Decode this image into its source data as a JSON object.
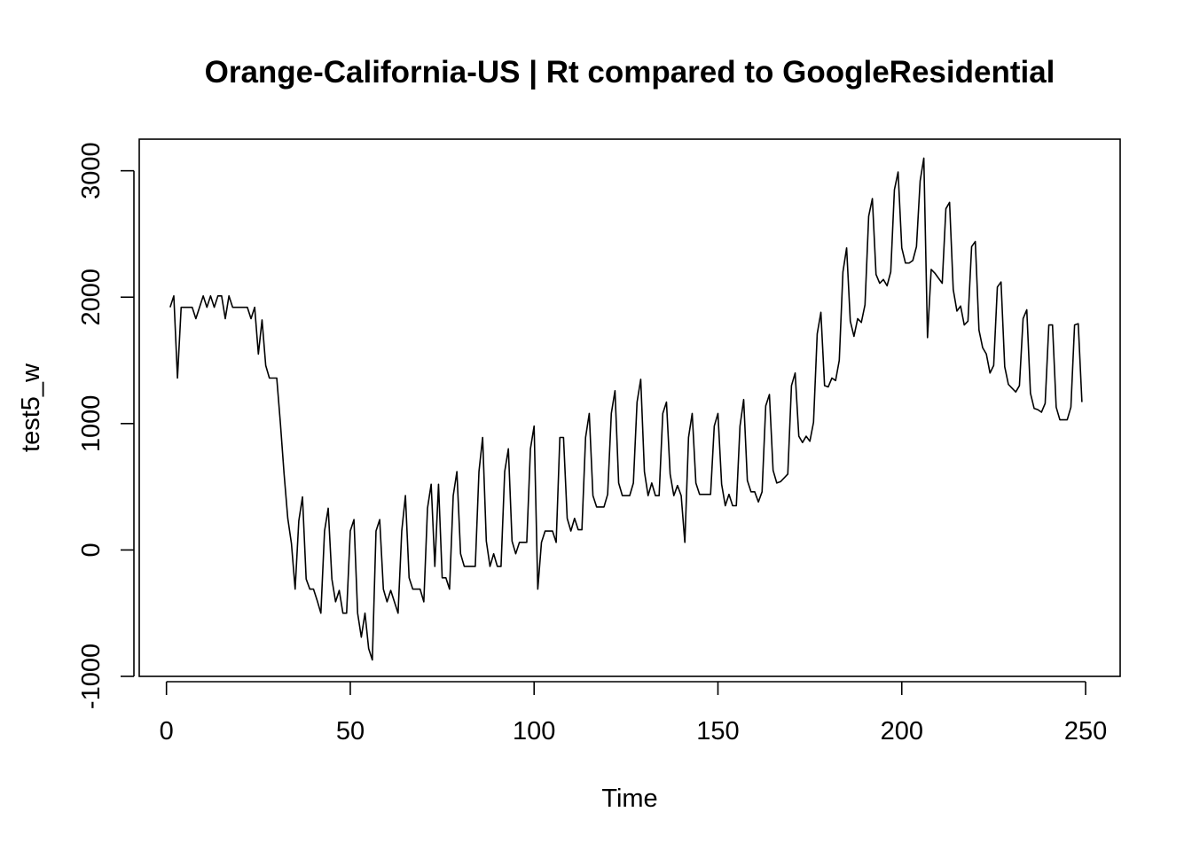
{
  "chart_data": {
    "type": "line",
    "title": "Orange-California-US | Rt compared to GoogleResidential",
    "xlabel": "Time",
    "ylabel": "test5_w",
    "xlim": [
      -7.4,
      259.4
    ],
    "ylim": [
      -1000,
      3250
    ],
    "xticks": [
      0,
      50,
      100,
      150,
      200,
      250
    ],
    "yticks": [
      -1000,
      0,
      1000,
      2000,
      3000
    ],
    "xtick_labels": [
      "0",
      "50",
      "100",
      "150",
      "200",
      "250"
    ],
    "ytick_labels": [
      "-1000",
      "0",
      "1000",
      "2000",
      "3000"
    ],
    "grid": false,
    "series": [
      {
        "x_start": 1,
        "values": [
          1920,
          2010,
          1360,
          1920,
          1920,
          1920,
          1920,
          1830,
          1920,
          2010,
          1920,
          2010,
          1920,
          2010,
          2010,
          1830,
          2010,
          1920,
          1920,
          1920,
          1920,
          1920,
          1830,
          1920,
          1550,
          1820,
          1460,
          1360,
          1360,
          1360,
          1000,
          600,
          250,
          50,
          -310,
          230,
          420,
          -230,
          -310,
          -310,
          -400,
          -500,
          150,
          330,
          -230,
          -410,
          -320,
          -500,
          -500,
          150,
          240,
          -500,
          -690,
          -500,
          -780,
          -870,
          150,
          240,
          -310,
          -410,
          -320,
          -410,
          -500,
          150,
          430,
          -220,
          -310,
          -310,
          -310,
          -410,
          330,
          520,
          -130,
          520,
          -220,
          -220,
          -310,
          430,
          620,
          -30,
          -130,
          -130,
          -130,
          -130,
          620,
          890,
          70,
          -130,
          -30,
          -130,
          -130,
          620,
          800,
          70,
          -30,
          60,
          60,
          60,
          800,
          980,
          -310,
          60,
          150,
          150,
          150,
          60,
          890,
          890,
          250,
          150,
          250,
          160,
          160,
          890,
          1080,
          430,
          340,
          340,
          340,
          440,
          1080,
          1260,
          530,
          430,
          430,
          430,
          530,
          1170,
          1350,
          620,
          430,
          530,
          430,
          430,
          1080,
          1170,
          600,
          430,
          510,
          430,
          60,
          890,
          1080,
          530,
          440,
          440,
          440,
          440,
          980,
          1080,
          520,
          350,
          440,
          350,
          350,
          980,
          1190,
          550,
          460,
          460,
          380,
          460,
          1140,
          1230,
          630,
          530,
          540,
          570,
          600,
          1300,
          1400,
          900,
          850,
          900,
          860,
          1010,
          1710,
          1880,
          1300,
          1290,
          1360,
          1340,
          1500,
          2200,
          2390,
          1810,
          1690,
          1830,
          1800,
          1940,
          2640,
          2780,
          2180,
          2110,
          2140,
          2090,
          2200,
          2850,
          2990,
          2390,
          2270,
          2270,
          2290,
          2400,
          2920,
          3100,
          1680,
          2220,
          2190,
          2150,
          2110,
          2700,
          2750,
          2060,
          1890,
          1930,
          1780,
          1810,
          2400,
          2440,
          1740,
          1600,
          1550,
          1400,
          1460,
          2080,
          2120,
          1450,
          1310,
          1280,
          1250,
          1300,
          1830,
          1900,
          1240,
          1120,
          1110,
          1090,
          1160,
          1780,
          1780,
          1130,
          1030,
          1030,
          1030,
          1130,
          1780,
          1790,
          1170
        ]
      }
    ]
  }
}
